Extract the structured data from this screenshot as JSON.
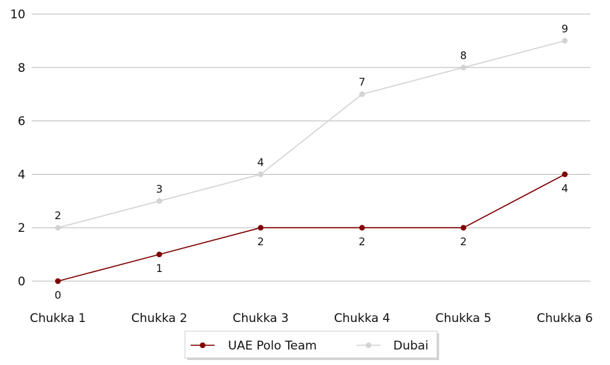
{
  "chart_data": {
    "type": "line",
    "title": "",
    "xlabel": "",
    "ylabel": "",
    "categories": [
      "Chukka 1",
      "Chukka 2",
      "Chukka 3",
      "Chukka 4",
      "Chukka 5",
      "Chukka 6"
    ],
    "ylim": [
      0,
      10
    ],
    "yticks": [
      0,
      2,
      4,
      6,
      8,
      10
    ],
    "grid": "horizontal",
    "legend_position": "bottom-center",
    "series": [
      {
        "name": "UAE Polo Team",
        "values": [
          0,
          1,
          2,
          2,
          2,
          4
        ],
        "color": "#800000",
        "label_side": "below"
      },
      {
        "name": "Dubai",
        "values": [
          2,
          3,
          4,
          7,
          8,
          9
        ],
        "color": "#d3d3d3",
        "label_side": "above"
      }
    ]
  }
}
